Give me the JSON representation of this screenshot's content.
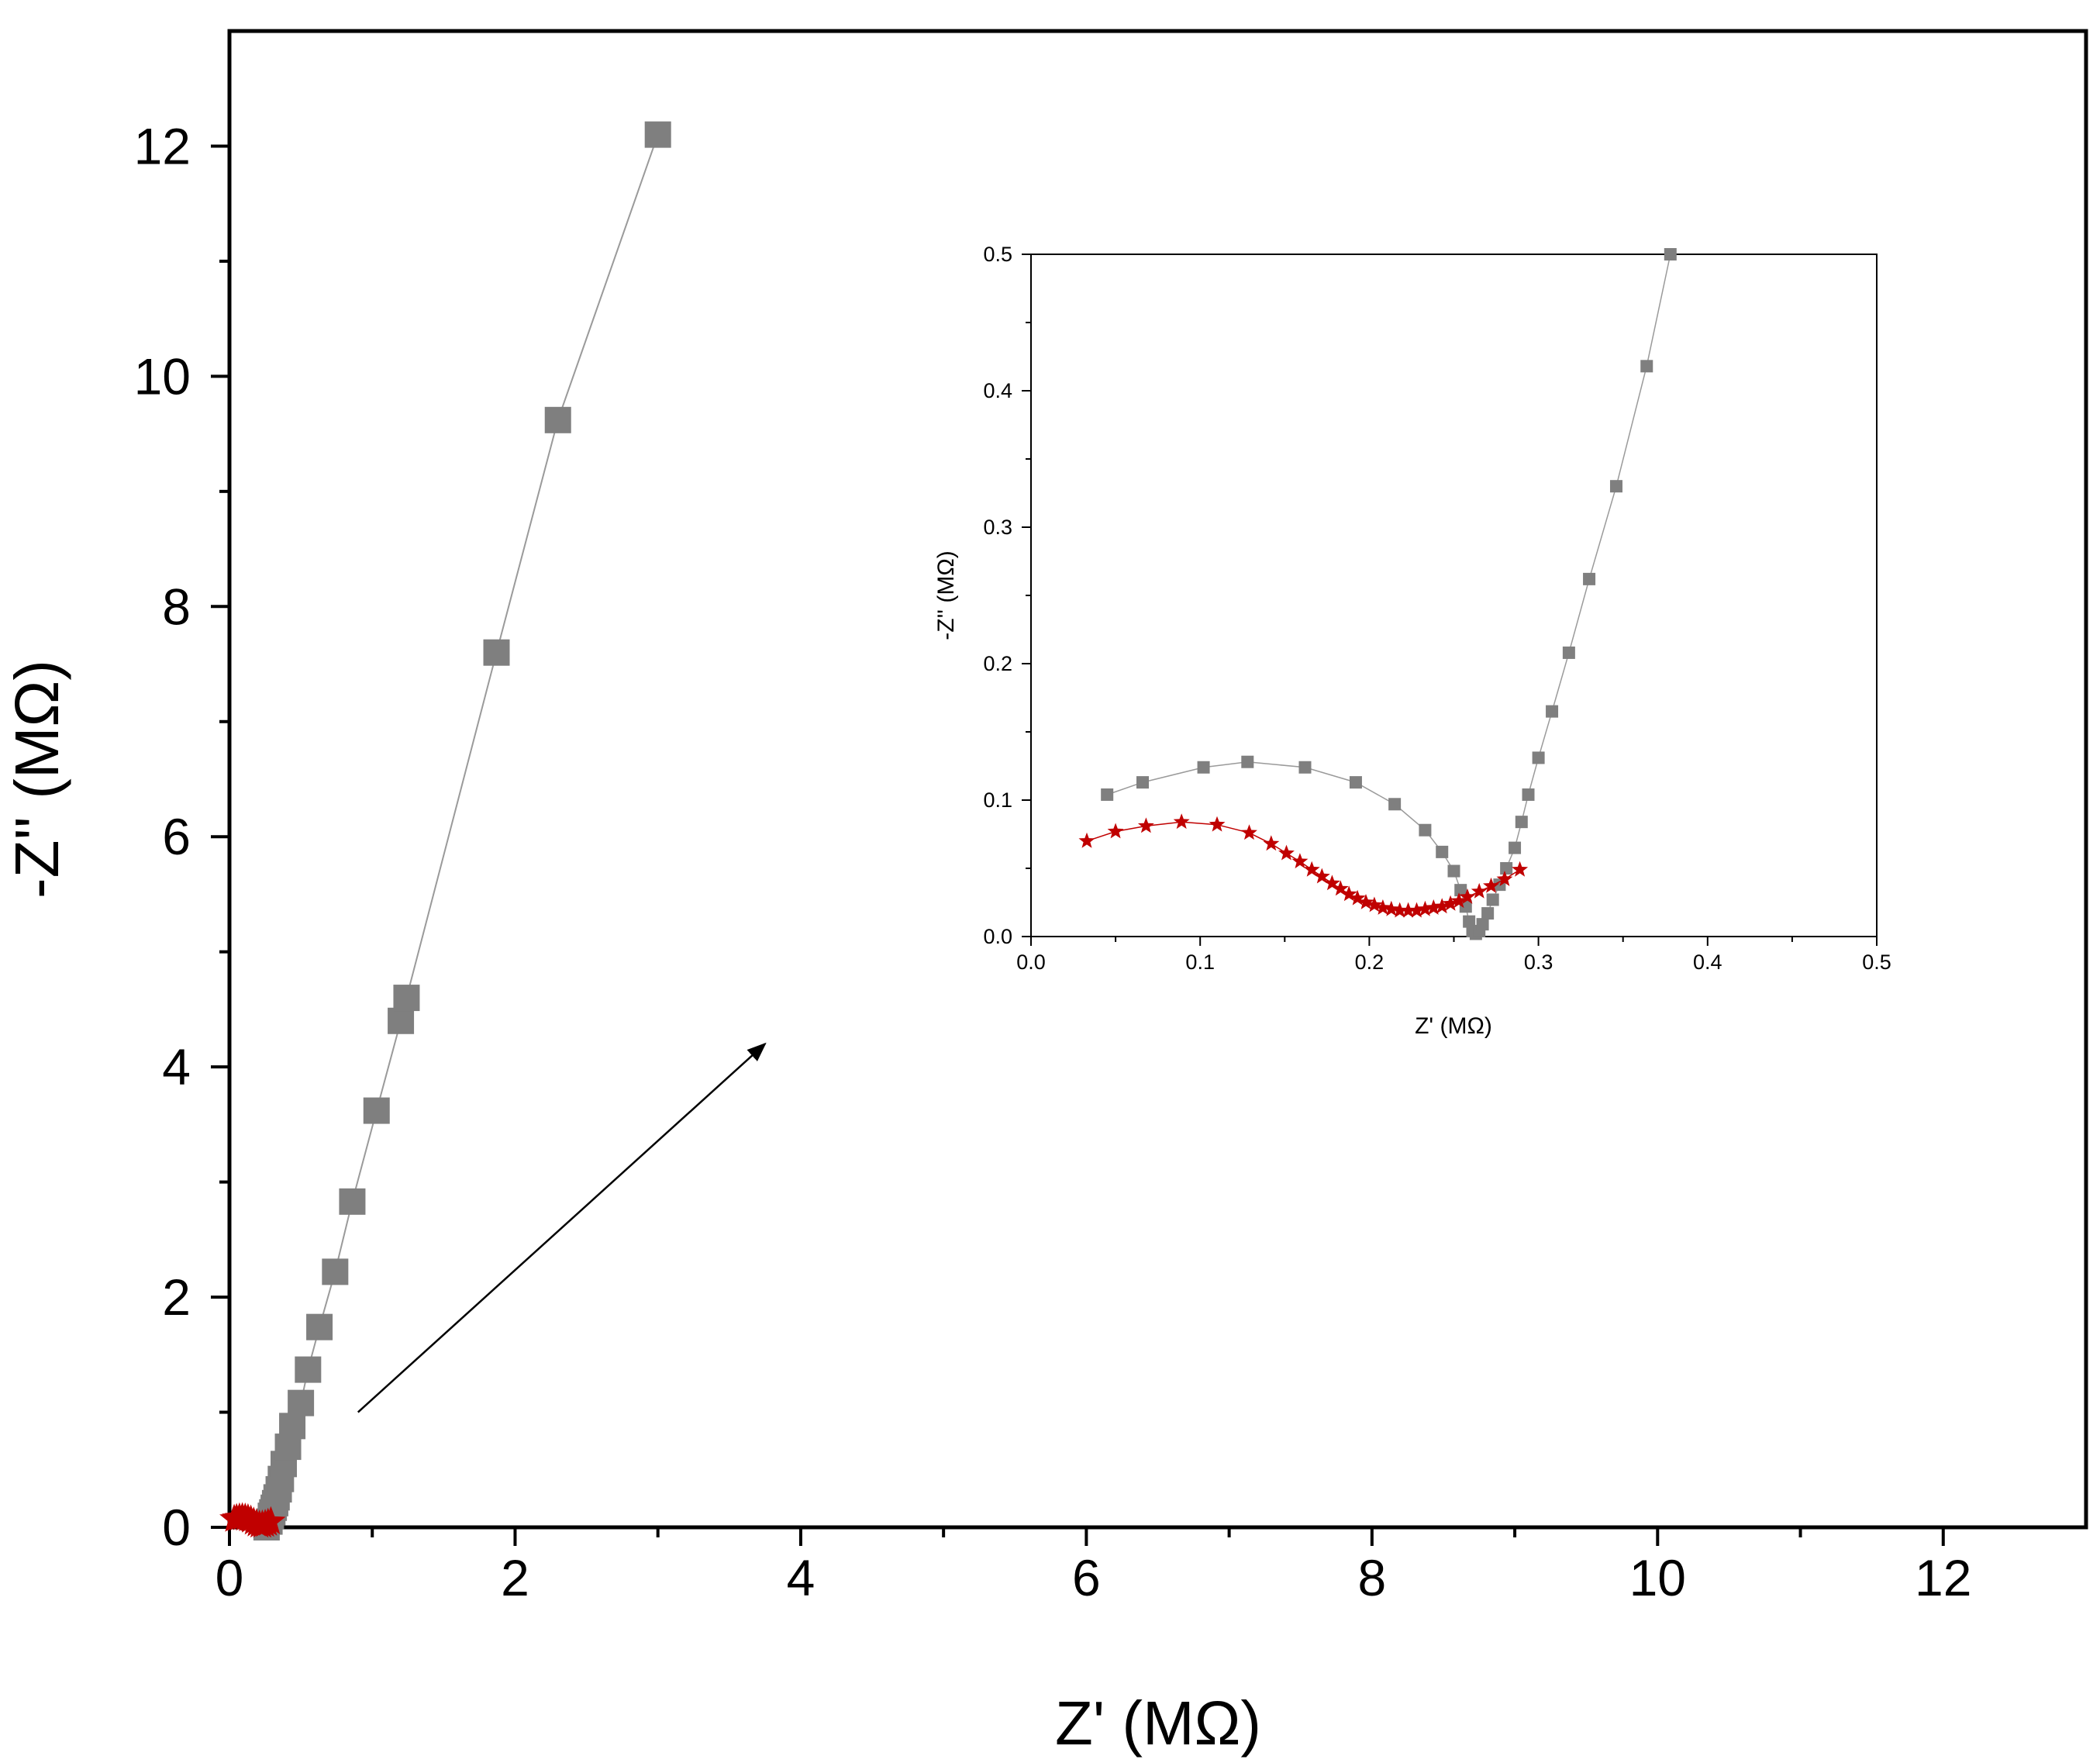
{
  "colors": {
    "series_gray": "#7f7f7f",
    "series_gray_line": "#9a9a9a",
    "series_red": "#c00000",
    "axis": "#000000",
    "background": "#ffffff"
  },
  "chart_data": [
    {
      "id": "main",
      "type": "scatter",
      "title": "",
      "xlabel": "Z' (MΩ)",
      "ylabel": "-Z'' (MΩ)",
      "xlim": [
        0,
        13
      ],
      "ylim": [
        0,
        13
      ],
      "xticks": [
        0,
        2,
        4,
        6,
        8,
        10,
        12
      ],
      "yticks": [
        0,
        2,
        4,
        6,
        8,
        10,
        12
      ],
      "grid": false,
      "series": [
        {
          "name": "gray squares",
          "marker": "square",
          "line": true,
          "points": [
            [
              0.26,
              0.0
            ],
            [
              0.28,
              0.05
            ],
            [
              0.29,
              0.1
            ],
            [
              0.3,
              0.13
            ],
            [
              0.31,
              0.17
            ],
            [
              0.32,
              0.21
            ],
            [
              0.33,
              0.26
            ],
            [
              0.345,
              0.33
            ],
            [
              0.36,
              0.42
            ],
            [
              0.38,
              0.55
            ],
            [
              0.41,
              0.7
            ],
            [
              0.44,
              0.88
            ],
            [
              0.5,
              1.08
            ],
            [
              0.55,
              1.37
            ],
            [
              0.63,
              1.74
            ],
            [
              0.74,
              2.22
            ],
            [
              0.86,
              2.83
            ],
            [
              1.03,
              3.62
            ],
            [
              1.2,
              4.4
            ],
            [
              1.24,
              4.6
            ],
            [
              1.87,
              7.6
            ],
            [
              2.3,
              9.62
            ],
            [
              3.0,
              12.1
            ]
          ]
        },
        {
          "name": "red stars",
          "marker": "star",
          "line": true,
          "points": [
            [
              0.033,
              0.07
            ],
            [
              0.05,
              0.077
            ],
            [
              0.07,
              0.082
            ],
            [
              0.09,
              0.084
            ],
            [
              0.11,
              0.081
            ],
            [
              0.13,
              0.075
            ],
            [
              0.15,
              0.063
            ],
            [
              0.17,
              0.046
            ],
            [
              0.19,
              0.03
            ],
            [
              0.21,
              0.02
            ],
            [
              0.23,
              0.02
            ],
            [
              0.25,
              0.026
            ],
            [
              0.27,
              0.036
            ],
            [
              0.29,
              0.049
            ]
          ]
        }
      ],
      "annotations": [
        {
          "type": "arrow",
          "from": [
            0.9,
            1.0
          ],
          "to": [
            3.75,
            4.2
          ]
        }
      ]
    },
    {
      "id": "inset",
      "type": "scatter",
      "title": "",
      "xlabel": "Z' (MΩ)",
      "ylabel": "-Z'' (MΩ)",
      "xlim": [
        0.0,
        0.5
      ],
      "ylim": [
        0.0,
        0.5
      ],
      "xticks": [
        "0.0",
        "0.1",
        "0.2",
        "0.3",
        "0.4",
        "0.5"
      ],
      "yticks": [
        "0.0",
        "0.1",
        "0.2",
        "0.3",
        "0.4",
        "0.5"
      ],
      "grid": false,
      "series": [
        {
          "name": "gray squares",
          "marker": "square",
          "line": true,
          "points": [
            [
              0.045,
              0.104
            ],
            [
              0.066,
              0.113
            ],
            [
              0.102,
              0.124
            ],
            [
              0.128,
              0.128
            ],
            [
              0.162,
              0.124
            ],
            [
              0.192,
              0.113
            ],
            [
              0.215,
              0.097
            ],
            [
              0.233,
              0.078
            ],
            [
              0.243,
              0.062
            ],
            [
              0.25,
              0.048
            ],
            [
              0.254,
              0.034
            ],
            [
              0.257,
              0.022
            ],
            [
              0.259,
              0.011
            ],
            [
              0.261,
              0.004
            ],
            [
              0.263,
              0.002
            ],
            [
              0.265,
              0.004
            ],
            [
              0.267,
              0.009
            ],
            [
              0.27,
              0.017
            ],
            [
              0.273,
              0.027
            ],
            [
              0.277,
              0.038
            ],
            [
              0.281,
              0.05
            ],
            [
              0.286,
              0.065
            ],
            [
              0.29,
              0.084
            ],
            [
              0.294,
              0.104
            ],
            [
              0.3,
              0.131
            ],
            [
              0.308,
              0.165
            ],
            [
              0.318,
              0.208
            ],
            [
              0.33,
              0.262
            ],
            [
              0.346,
              0.33
            ],
            [
              0.364,
              0.418
            ],
            [
              0.378,
              0.5
            ]
          ]
        },
        {
          "name": "red stars",
          "marker": "star",
          "line": true,
          "points": [
            [
              0.033,
              0.07
            ],
            [
              0.05,
              0.077
            ],
            [
              0.068,
              0.081
            ],
            [
              0.089,
              0.084
            ],
            [
              0.11,
              0.082
            ],
            [
              0.129,
              0.076
            ],
            [
              0.142,
              0.068
            ],
            [
              0.151,
              0.061
            ],
            [
              0.159,
              0.055
            ],
            [
              0.166,
              0.049
            ],
            [
              0.172,
              0.044
            ],
            [
              0.178,
              0.039
            ],
            [
              0.183,
              0.035
            ],
            [
              0.188,
              0.031
            ],
            [
              0.193,
              0.028
            ],
            [
              0.198,
              0.025
            ],
            [
              0.203,
              0.023
            ],
            [
              0.208,
              0.021
            ],
            [
              0.213,
              0.02
            ],
            [
              0.218,
              0.019
            ],
            [
              0.223,
              0.019
            ],
            [
              0.228,
              0.019
            ],
            [
              0.233,
              0.02
            ],
            [
              0.238,
              0.021
            ],
            [
              0.243,
              0.022
            ],
            [
              0.248,
              0.024
            ],
            [
              0.253,
              0.026
            ],
            [
              0.258,
              0.029
            ],
            [
              0.265,
              0.033
            ],
            [
              0.272,
              0.037
            ],
            [
              0.28,
              0.042
            ],
            [
              0.289,
              0.049
            ]
          ]
        }
      ]
    }
  ]
}
